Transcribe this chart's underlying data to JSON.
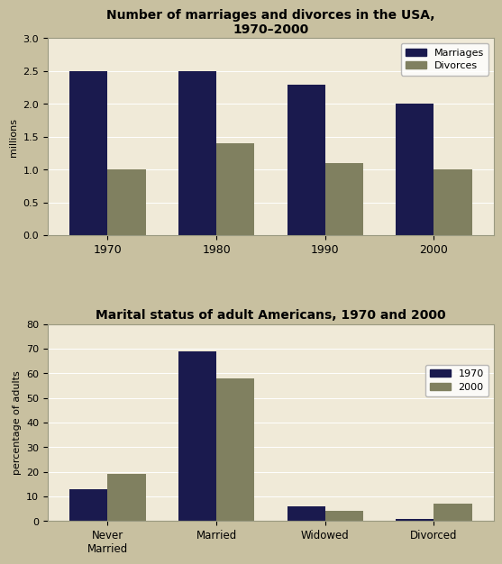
{
  "chart1": {
    "title": "Number of marriages and divorces in the USA,\n1970–2000",
    "years": [
      "1970",
      "1980",
      "1990",
      "2000"
    ],
    "marriages": [
      2.5,
      2.5,
      2.3,
      2.0
    ],
    "divorces": [
      1.0,
      1.4,
      1.1,
      1.0
    ],
    "ylabel": "millions",
    "ylim": [
      0,
      3
    ],
    "yticks": [
      0,
      0.5,
      1,
      1.5,
      2,
      2.5,
      3
    ],
    "bar_color_marriages": "#1a1a4e",
    "bar_color_divorces": "#808060",
    "legend_labels": [
      "Marriages",
      "Divorces"
    ]
  },
  "chart2": {
    "title": "Marital status of adult Americans, 1970 and 2000",
    "categories": [
      "Never\nMarried",
      "Married",
      "Widowed",
      "Divorced"
    ],
    "values_1970": [
      13,
      69,
      6,
      1
    ],
    "values_2000": [
      19,
      58,
      4,
      7
    ],
    "ylabel": "percentage of adults",
    "ylim": [
      0,
      80
    ],
    "yticks": [
      0,
      10,
      20,
      30,
      40,
      50,
      60,
      70,
      80
    ],
    "bar_color_1970": "#1a1a4e",
    "bar_color_2000": "#808060",
    "legend_labels": [
      "1970",
      "2000"
    ]
  },
  "chart_bg": "#f0ead8",
  "outer_bg": "#c8c0a0",
  "border_color": "#999980"
}
